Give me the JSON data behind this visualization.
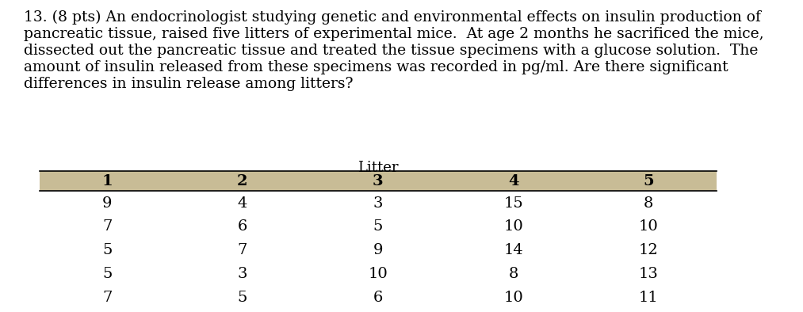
{
  "title_text": "13. (8 pts) An endocrinologist studying genetic and environmental effects on insulin production of\npancreatic tissue, raised five litters of experimental mice.  At age 2 months he sacrificed the mice,\ndissected out the pancreatic tissue and treated the tissue specimens with a glucose solution.  The\namount of insulin released from these specimens was recorded in pg/ml. Are there significant\ndifferences in insulin release among litters?",
  "litter_label": "Litter",
  "col_headers": [
    "1",
    "2",
    "3",
    "4",
    "5"
  ],
  "table_data": [
    [
      9,
      4,
      3,
      15,
      8
    ],
    [
      7,
      6,
      5,
      10,
      10
    ],
    [
      5,
      7,
      9,
      14,
      12
    ],
    [
      5,
      3,
      10,
      8,
      13
    ],
    [
      7,
      5,
      6,
      10,
      11
    ]
  ],
  "header_bg": "#c8bc96",
  "header_text_color": "#000000",
  "data_text_color": "#000000",
  "text_color": "#000000",
  "bg_color": "#ffffff",
  "title_fontsize": 13.5,
  "header_fontsize": 14,
  "data_fontsize": 14,
  "litter_label_fontsize": 13
}
